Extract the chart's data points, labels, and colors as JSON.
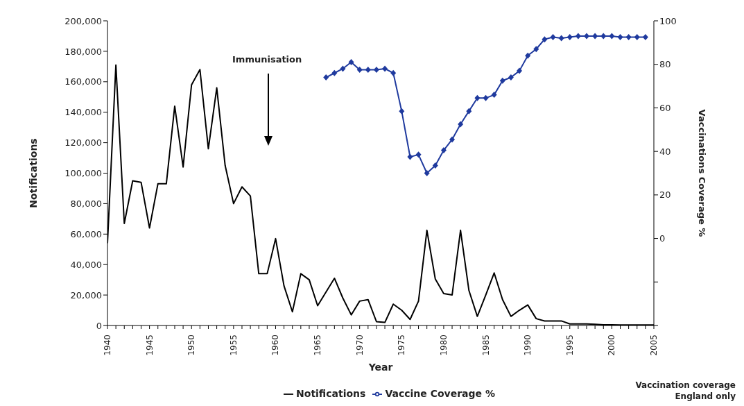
{
  "chart_data": {
    "type": "line",
    "xlabel": "Year",
    "ylabel": "Notifications",
    "y2label": "Vaccinations Coverage %",
    "x": [
      1940,
      1941,
      1942,
      1943,
      1944,
      1945,
      1946,
      1947,
      1948,
      1949,
      1950,
      1951,
      1952,
      1953,
      1954,
      1955,
      1956,
      1957,
      1958,
      1959,
      1960,
      1961,
      1962,
      1963,
      1964,
      1965,
      1966,
      1967,
      1968,
      1969,
      1970,
      1971,
      1972,
      1973,
      1974,
      1975,
      1976,
      1977,
      1978,
      1979,
      1980,
      1981,
      1982,
      1983,
      1984,
      1985,
      1986,
      1987,
      1988,
      1989,
      1990,
      1991,
      1992,
      1993,
      1994,
      1995,
      1996,
      1997,
      1998,
      1999,
      2000,
      2001,
      2002,
      2003,
      2004,
      2005
    ],
    "series": [
      {
        "name": "Notifications",
        "color": "#000000",
        "marker": "none",
        "values": [
          54000,
          171000,
          67000,
          95000,
          94000,
          64000,
          93000,
          93000,
          144000,
          104000,
          158000,
          168000,
          116000,
          156000,
          105000,
          80000,
          91000,
          85000,
          34000,
          34000,
          57000,
          26000,
          9000,
          34000,
          30000,
          13000,
          22000,
          31000,
          18000,
          7000,
          16000,
          17000,
          2500,
          2000,
          14000,
          10000,
          4000,
          16000,
          62500,
          30500,
          21000,
          20000,
          62500,
          23000,
          6000,
          20000,
          34500,
          17000,
          6000,
          10000,
          13500,
          4500,
          3000,
          3000,
          3000,
          1000,
          1000,
          1000,
          800,
          500,
          400,
          300,
          300,
          300,
          300,
          300
        ]
      },
      {
        "name": "Vaccine Coverage %",
        "color": "#1f3a9e",
        "marker": "diamond",
        "axis": "y2",
        "x": [
          1966,
          1967,
          1968,
          1969,
          1970,
          1971,
          1972,
          1973,
          1974,
          1975,
          1976,
          1977,
          1978,
          1979,
          1980,
          1981,
          1982,
          1983,
          1984,
          1985,
          1986,
          1987,
          1988,
          1989,
          1990,
          1991,
          1992,
          1993,
          1994,
          1995,
          1996,
          1997,
          1998,
          1999,
          2000,
          2001,
          2002,
          2003,
          2004
        ],
        "values": [
          74,
          76,
          78,
          81,
          77.5,
          77.5,
          77.5,
          78,
          76,
          58.5,
          37.5,
          38.5,
          30,
          33.5,
          40.5,
          45.5,
          52.5,
          58.5,
          64.5,
          64.5,
          66,
          72.5,
          74,
          77,
          84,
          87,
          91.5,
          92.5,
          92,
          92.5,
          93,
          93,
          93,
          93,
          93,
          92.5,
          92.5,
          92.5,
          92.5
        ]
      }
    ],
    "xlim": [
      1940,
      2005
    ],
    "xticks": [
      1940,
      {
        "value": 1941,
        "label": null
      },
      {
        "value": 1942,
        "label": null
      },
      {
        "value": 1943,
        "label": null
      },
      {
        "value": 1944,
        "label": null
      },
      1945,
      {
        "value": 1946,
        "label": null
      },
      {
        "value": 1947,
        "label": null
      },
      {
        "value": 1948,
        "label": null
      },
      {
        "value": 1949,
        "label": null
      },
      1950,
      {
        "value": 1951,
        "label": null
      },
      {
        "value": 1952,
        "label": null
      },
      {
        "value": 1953,
        "label": null
      },
      {
        "value": 1954,
        "label": null
      },
      1955,
      {
        "value": 1956,
        "label": null
      },
      {
        "value": 1957,
        "label": null
      },
      {
        "value": 1958,
        "label": null
      },
      {
        "value": 1959,
        "label": null
      },
      1960,
      {
        "value": 1961,
        "label": null
      },
      {
        "value": 1962,
        "label": null
      },
      {
        "value": 1963,
        "label": null
      },
      {
        "value": 1964,
        "label": null
      },
      1965,
      {
        "value": 1966,
        "label": null
      },
      {
        "value": 1967,
        "label": null
      },
      {
        "value": 1968,
        "label": null
      },
      {
        "value": 1969,
        "label": null
      },
      1970,
      {
        "value": 1971,
        "label": null
      },
      {
        "value": 1972,
        "label": null
      },
      {
        "value": 1973,
        "label": null
      },
      {
        "value": 1974,
        "label": null
      },
      1975,
      {
        "value": 1976,
        "label": null
      },
      {
        "value": 1977,
        "label": null
      },
      {
        "value": 1978,
        "label": null
      },
      {
        "value": 1979,
        "label": null
      },
      1980,
      {
        "value": 1981,
        "label": null
      },
      {
        "value": 1982,
        "label": null
      },
      {
        "value": 1983,
        "label": null
      },
      {
        "value": 1984,
        "label": null
      },
      1985,
      {
        "value": 1986,
        "label": null
      },
      {
        "value": 1987,
        "label": null
      },
      {
        "value": 1988,
        "label": null
      },
      {
        "value": 1989,
        "label": null
      },
      1990,
      {
        "value": 1991,
        "label": null
      },
      {
        "value": 1992,
        "label": null
      },
      {
        "value": 1993,
        "label": null
      },
      {
        "value": 1994,
        "label": null
      },
      1995,
      {
        "value": 1996,
        "label": null
      },
      {
        "value": 1997,
        "label": null
      },
      {
        "value": 1998,
        "label": null
      },
      {
        "value": 1999,
        "label": null
      },
      2000,
      {
        "value": 2001,
        "label": null
      },
      {
        "value": 2002,
        "label": null
      },
      {
        "value": 2003,
        "label": null
      },
      {
        "value": 2004,
        "label": null
      },
      2005
    ],
    "ylim": [
      0,
      200000
    ],
    "yticks": [
      0,
      {
        "value": 20000,
        "label": "20,000"
      },
      {
        "value": 40000,
        "label": "40,000"
      },
      {
        "value": 60000,
        "label": "60,000"
      },
      {
        "value": 80000,
        "label": "80,000"
      },
      {
        "value": 100000,
        "label": "100,000"
      },
      {
        "value": 120000,
        "label": "120,000"
      },
      {
        "value": 140000,
        "label": "140,000"
      },
      {
        "value": 160000,
        "label": "160,000"
      },
      {
        "value": 180000,
        "label": "180,000"
      },
      {
        "value": 200000,
        "label": "200,000"
      }
    ],
    "y2lim": [
      -40,
      100
    ],
    "y2ticks": [
      {
        "value": -40,
        "label": null
      },
      {
        "value": -20,
        "label": null
      },
      0,
      20,
      40,
      60,
      80,
      100
    ],
    "legend": "bottom",
    "annotations": [
      "Immunisation",
      "Vaccination coverage\nEngland only"
    ]
  }
}
